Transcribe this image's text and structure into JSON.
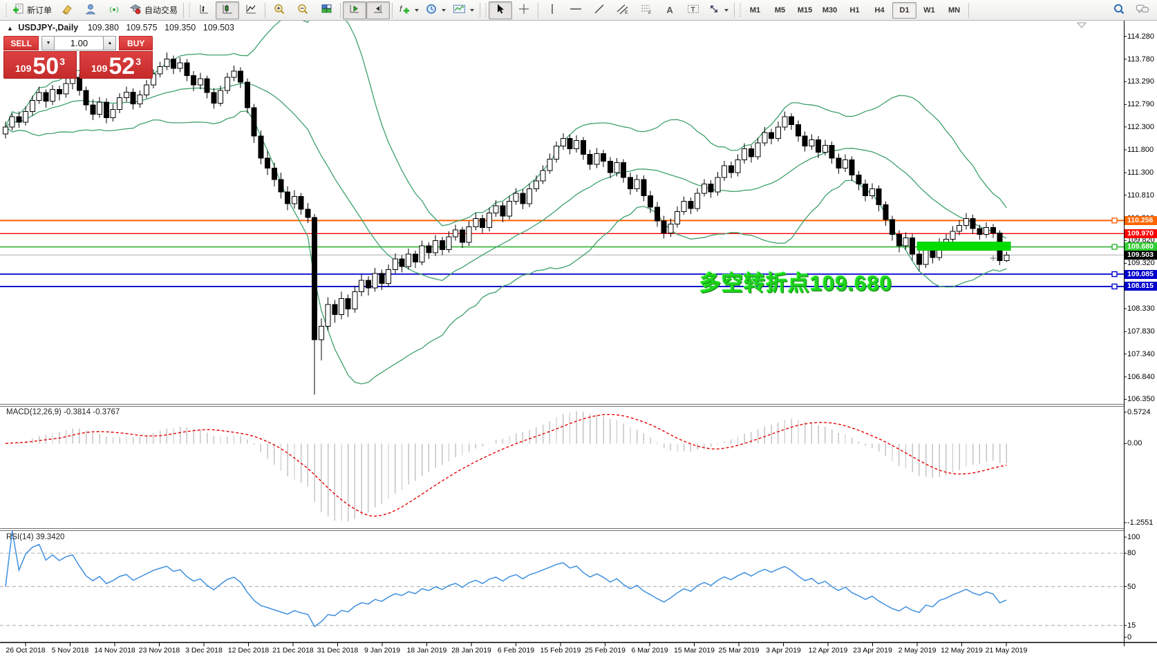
{
  "toolbar": {
    "new_order_label": "新订单",
    "autotrading_label": "自动交易",
    "icon_letters": {
      "text": "A",
      "label": "T",
      "channel": "E",
      "fibo": "F",
      "indicators": "f"
    },
    "timeframes": [
      "M1",
      "M5",
      "M15",
      "M30",
      "H1",
      "H4",
      "D1",
      "W1",
      "MN"
    ],
    "active_timeframe": "D1"
  },
  "title_bar": {
    "symbol": "USDJPY-,Daily",
    "open": "109.380",
    "high": "109.575",
    "low": "109.350",
    "close": "109.503"
  },
  "trade_panel": {
    "sell_label": "SELL",
    "buy_label": "BUY",
    "lot_value": "1.00",
    "sell_price_prefix": "109",
    "sell_price_big": "50",
    "sell_price_sup": "3",
    "buy_price_prefix": "109",
    "buy_price_big": "52",
    "buy_price_sup": "3"
  },
  "annotation": {
    "text": "多空转折点109.680",
    "color": "#1ed11e"
  },
  "price_axis": {
    "ticks": [
      "114.280",
      "113.780",
      "113.290",
      "112.790",
      "112.300",
      "111.800",
      "111.300",
      "110.810",
      "110.310",
      "109.820",
      "109.320",
      "108.830",
      "108.330",
      "107.830",
      "107.340",
      "106.840",
      "106.350"
    ]
  },
  "levels": [
    {
      "price": 110.256,
      "label": "110.256",
      "color": "#ff5e00",
      "label_bg": "#ff6600",
      "width": 2,
      "marker": true
    },
    {
      "price": 109.97,
      "label": "109.970",
      "color": "#ff0000",
      "label_bg": "#ff0000",
      "width": 1.3,
      "marker": false
    },
    {
      "price": 109.68,
      "label": "109.680",
      "color": "#2eb42e",
      "label_bg": "#33cc33",
      "width": 1.6,
      "marker": true
    },
    {
      "price": 109.085,
      "label": "109.085",
      "color": "#0000cd",
      "label_bg": "#0000cd",
      "width": 1.8,
      "marker": true
    },
    {
      "price": 108.815,
      "label": "108.815",
      "color": "#0000cd",
      "label_bg": "#0000cd",
      "width": 1.8,
      "marker": true
    }
  ],
  "current_price": {
    "price": 109.503,
    "label": "109.503",
    "line_color": "#b4b4b4",
    "label_bg": "#000000"
  },
  "highlight_bar": {
    "from_index": 136,
    "to_index": 149,
    "price_top": 109.79,
    "price_bottom": 109.6,
    "color": "#00dd00"
  },
  "macd_panel": {
    "label": "MACD(12,26,9) -0.3814 -0.3767",
    "axis_max": "0.5724",
    "axis_zero": "0.00",
    "axis_min": "-1.2551"
  },
  "rsi_panel": {
    "label": "RSI(14) 39.3420",
    "axis_top": "100",
    "axis_bottom": "0",
    "levels": [
      {
        "value": 80,
        "label": "80"
      },
      {
        "value": 50,
        "label": "50"
      },
      {
        "value": 15,
        "label": "15"
      }
    ]
  },
  "x_axis": {
    "dates": [
      "26 Oct 2018",
      "5 Nov 2018",
      "14 Nov 2018",
      "23 Nov 2018",
      "3 Dec 2018",
      "12 Dec 2018",
      "21 Dec 2018",
      "31 Dec 2018",
      "9 Jan 2019",
      "18 Jan 2019",
      "28 Jan 2019",
      "6 Feb 2019",
      "15 Feb 2019",
      "25 Feb 2019",
      "6 Mar 2019",
      "15 Mar 2019",
      "25 Mar 2019",
      "3 Apr 2019",
      "12 Apr 2019",
      "23 Apr 2019",
      "2 May 2019",
      "12 May 2019",
      "21 May 2019"
    ]
  },
  "chart_data": {
    "type": "candlestick",
    "title": "USDJPY Daily",
    "ylim": [
      106.25,
      114.62
    ],
    "up_color": "#ffffff",
    "down_color": "#000000",
    "wick_color": "#000000",
    "overlays": [
      {
        "type": "bollinger_bands",
        "period": 20,
        "deviation": 2,
        "color": "#3da06b"
      }
    ],
    "indicators": [
      {
        "type": "MACD",
        "params": [
          12,
          26,
          9
        ],
        "values_text": "-0.3814 -0.3767",
        "histogram_color": "#c4c4c4",
        "signal_color": "#e80000"
      },
      {
        "type": "RSI",
        "params": [
          14
        ],
        "value_text": "39.3420",
        "color": "#3e8fe0"
      }
    ],
    "candles": [
      [
        112.15,
        112.42,
        112.05,
        112.3
      ],
      [
        112.3,
        112.6,
        112.22,
        112.52
      ],
      [
        112.52,
        112.64,
        112.28,
        112.4
      ],
      [
        112.4,
        112.75,
        112.33,
        112.64
      ],
      [
        112.64,
        112.98,
        112.55,
        112.88
      ],
      [
        112.88,
        113.18,
        112.8,
        113.05
      ],
      [
        113.05,
        113.12,
        112.72,
        112.86
      ],
      [
        112.86,
        113.22,
        112.78,
        113.12
      ],
      [
        113.12,
        113.2,
        112.88,
        113.02
      ],
      [
        113.02,
        113.36,
        112.94,
        113.25
      ],
      [
        113.25,
        113.5,
        113.12,
        113.38
      ],
      [
        113.38,
        113.46,
        112.98,
        113.1
      ],
      [
        113.1,
        113.18,
        112.66,
        112.78
      ],
      [
        112.78,
        112.9,
        112.45,
        112.58
      ],
      [
        112.58,
        112.95,
        112.5,
        112.84
      ],
      [
        112.84,
        112.92,
        112.38,
        112.5
      ],
      [
        112.5,
        112.8,
        112.42,
        112.68
      ],
      [
        112.68,
        113.04,
        112.6,
        112.94
      ],
      [
        112.94,
        113.18,
        112.85,
        113.06
      ],
      [
        113.06,
        113.14,
        112.68,
        112.8
      ],
      [
        112.8,
        113.1,
        112.72,
        113.0
      ],
      [
        113.0,
        113.32,
        112.92,
        113.22
      ],
      [
        113.22,
        113.56,
        113.14,
        113.46
      ],
      [
        113.46,
        113.72,
        113.38,
        113.62
      ],
      [
        113.62,
        113.93,
        113.54,
        113.78
      ],
      [
        113.78,
        113.86,
        113.45,
        113.58
      ],
      [
        113.58,
        113.82,
        113.5,
        113.7
      ],
      [
        113.7,
        113.78,
        113.3,
        113.42
      ],
      [
        113.42,
        113.52,
        113.08,
        113.22
      ],
      [
        113.22,
        113.48,
        113.12,
        113.35
      ],
      [
        113.35,
        113.42,
        112.92,
        113.05
      ],
      [
        113.05,
        113.15,
        112.7,
        112.82
      ],
      [
        112.82,
        113.2,
        112.75,
        113.1
      ],
      [
        113.1,
        113.48,
        113.02,
        113.38
      ],
      [
        113.38,
        113.64,
        113.3,
        113.52
      ],
      [
        113.52,
        113.6,
        113.15,
        113.28
      ],
      [
        113.28,
        113.36,
        112.6,
        112.72
      ],
      [
        112.72,
        112.8,
        111.95,
        112.1
      ],
      [
        112.1,
        112.22,
        111.48,
        111.62
      ],
      [
        111.62,
        111.78,
        111.25,
        111.4
      ],
      [
        111.4,
        111.52,
        111.0,
        111.15
      ],
      [
        111.15,
        111.3,
        110.74,
        110.88
      ],
      [
        110.88,
        111.0,
        110.48,
        110.62
      ],
      [
        110.62,
        110.92,
        110.52,
        110.78
      ],
      [
        110.78,
        110.86,
        110.38,
        110.5
      ],
      [
        110.5,
        110.64,
        110.2,
        110.32
      ],
      [
        110.32,
        110.4,
        106.45,
        107.65
      ],
      [
        107.65,
        108.12,
        107.2,
        107.95
      ],
      [
        107.95,
        108.58,
        107.85,
        108.42
      ],
      [
        108.42,
        108.52,
        108.02,
        108.2
      ],
      [
        108.2,
        108.7,
        108.1,
        108.55
      ],
      [
        108.55,
        108.64,
        108.15,
        108.32
      ],
      [
        108.32,
        108.82,
        108.24,
        108.7
      ],
      [
        108.7,
        109.08,
        108.6,
        108.95
      ],
      [
        108.95,
        109.04,
        108.62,
        108.78
      ],
      [
        108.78,
        109.22,
        108.7,
        109.1
      ],
      [
        109.1,
        109.18,
        108.74,
        108.88
      ],
      [
        108.88,
        109.3,
        108.8,
        109.18
      ],
      [
        109.18,
        109.54,
        109.1,
        109.42
      ],
      [
        109.42,
        109.5,
        109.12,
        109.25
      ],
      [
        109.25,
        109.64,
        109.18,
        109.52
      ],
      [
        109.52,
        109.6,
        109.22,
        109.35
      ],
      [
        109.35,
        109.82,
        109.28,
        109.7
      ],
      [
        109.7,
        109.78,
        109.42,
        109.55
      ],
      [
        109.55,
        109.94,
        109.48,
        109.82
      ],
      [
        109.82,
        109.9,
        109.5,
        109.62
      ],
      [
        109.62,
        110.02,
        109.55,
        109.9
      ],
      [
        109.9,
        110.16,
        109.82,
        110.05
      ],
      [
        110.05,
        110.12,
        109.66,
        109.78
      ],
      [
        109.78,
        110.24,
        109.7,
        110.12
      ],
      [
        110.12,
        110.42,
        110.04,
        110.3
      ],
      [
        110.3,
        110.38,
        109.98,
        110.1
      ],
      [
        110.1,
        110.54,
        110.02,
        110.42
      ],
      [
        110.42,
        110.7,
        110.34,
        110.58
      ],
      [
        110.58,
        110.66,
        110.22,
        110.35
      ],
      [
        110.35,
        110.8,
        110.28,
        110.68
      ],
      [
        110.68,
        110.96,
        110.6,
        110.85
      ],
      [
        110.85,
        110.94,
        110.5,
        110.62
      ],
      [
        110.62,
        111.06,
        110.55,
        110.95
      ],
      [
        110.95,
        111.24,
        110.88,
        111.12
      ],
      [
        111.12,
        111.46,
        111.05,
        111.35
      ],
      [
        111.35,
        111.72,
        111.28,
        111.6
      ],
      [
        111.6,
        111.98,
        111.52,
        111.88
      ],
      [
        111.88,
        112.16,
        111.8,
        112.05
      ],
      [
        112.05,
        112.13,
        111.7,
        111.82
      ],
      [
        111.82,
        112.12,
        111.74,
        112.0
      ],
      [
        112.0,
        112.08,
        111.58,
        111.7
      ],
      [
        111.7,
        111.8,
        111.36,
        111.48
      ],
      [
        111.48,
        111.84,
        111.4,
        111.72
      ],
      [
        111.72,
        111.8,
        111.42,
        111.55
      ],
      [
        111.55,
        111.64,
        111.18,
        111.3
      ],
      [
        111.3,
        111.62,
        111.22,
        111.52
      ],
      [
        111.52,
        111.6,
        111.08,
        111.2
      ],
      [
        111.2,
        111.3,
        110.82,
        110.95
      ],
      [
        110.95,
        111.26,
        110.88,
        111.15
      ],
      [
        111.15,
        111.24,
        110.68,
        110.8
      ],
      [
        110.8,
        110.9,
        110.42,
        110.55
      ],
      [
        110.55,
        110.66,
        110.12,
        110.25
      ],
      [
        110.25,
        110.36,
        109.86,
        109.98
      ],
      [
        109.98,
        110.3,
        109.9,
        110.18
      ],
      [
        110.18,
        110.56,
        110.1,
        110.45
      ],
      [
        110.45,
        110.78,
        110.38,
        110.68
      ],
      [
        110.68,
        110.76,
        110.4,
        110.52
      ],
      [
        110.52,
        110.96,
        110.45,
        110.85
      ],
      [
        110.85,
        111.16,
        110.78,
        111.05
      ],
      [
        111.05,
        111.14,
        110.75,
        110.88
      ],
      [
        110.88,
        111.32,
        110.8,
        111.2
      ],
      [
        111.2,
        111.56,
        111.12,
        111.45
      ],
      [
        111.45,
        111.54,
        111.18,
        111.3
      ],
      [
        111.3,
        111.7,
        111.22,
        111.58
      ],
      [
        111.58,
        111.94,
        111.5,
        111.82
      ],
      [
        111.82,
        111.9,
        111.52,
        111.65
      ],
      [
        111.65,
        112.06,
        111.58,
        111.95
      ],
      [
        111.95,
        112.3,
        111.88,
        112.18
      ],
      [
        112.18,
        112.26,
        111.92,
        112.05
      ],
      [
        112.05,
        112.42,
        111.98,
        112.3
      ],
      [
        112.3,
        112.64,
        112.22,
        112.52
      ],
      [
        112.52,
        112.6,
        112.24,
        112.35
      ],
      [
        112.35,
        112.44,
        111.98,
        112.1
      ],
      [
        112.1,
        112.2,
        111.76,
        111.88
      ],
      [
        111.88,
        112.14,
        111.8,
        112.02
      ],
      [
        112.02,
        112.1,
        111.62,
        111.75
      ],
      [
        111.75,
        112.02,
        111.68,
        111.9
      ],
      [
        111.9,
        111.98,
        111.5,
        111.62
      ],
      [
        111.62,
        111.72,
        111.28,
        111.4
      ],
      [
        111.4,
        111.7,
        111.32,
        111.58
      ],
      [
        111.58,
        111.66,
        111.12,
        111.25
      ],
      [
        111.25,
        111.34,
        110.92,
        111.05
      ],
      [
        111.05,
        111.15,
        110.68,
        110.8
      ],
      [
        110.8,
        111.07,
        110.72,
        110.95
      ],
      [
        110.95,
        111.02,
        110.46,
        110.6
      ],
      [
        110.6,
        110.68,
        110.14,
        110.28
      ],
      [
        110.28,
        110.36,
        109.82,
        109.95
      ],
      [
        109.95,
        110.04,
        109.56,
        109.7
      ],
      [
        109.7,
        110.0,
        109.62,
        109.88
      ],
      [
        109.88,
        109.96,
        109.38,
        109.52
      ],
      [
        109.52,
        109.6,
        109.15,
        109.3
      ],
      [
        109.3,
        109.74,
        109.22,
        109.62
      ],
      [
        109.62,
        109.7,
        109.32,
        109.45
      ],
      [
        109.45,
        109.87,
        109.38,
        109.75
      ],
      [
        109.75,
        109.96,
        109.66,
        109.85
      ],
      [
        109.85,
        110.13,
        109.78,
        110.02
      ],
      [
        110.02,
        110.26,
        109.94,
        110.15
      ],
      [
        110.15,
        110.42,
        110.06,
        110.3
      ],
      [
        110.3,
        110.38,
        109.96,
        110.08
      ],
      [
        110.08,
        110.16,
        109.84,
        109.95
      ],
      [
        109.95,
        110.22,
        109.88,
        110.1
      ],
      [
        110.1,
        110.18,
        109.88,
        109.98
      ],
      [
        109.98,
        110.04,
        109.28,
        109.38
      ],
      [
        109.38,
        109.575,
        109.35,
        109.503
      ]
    ]
  }
}
